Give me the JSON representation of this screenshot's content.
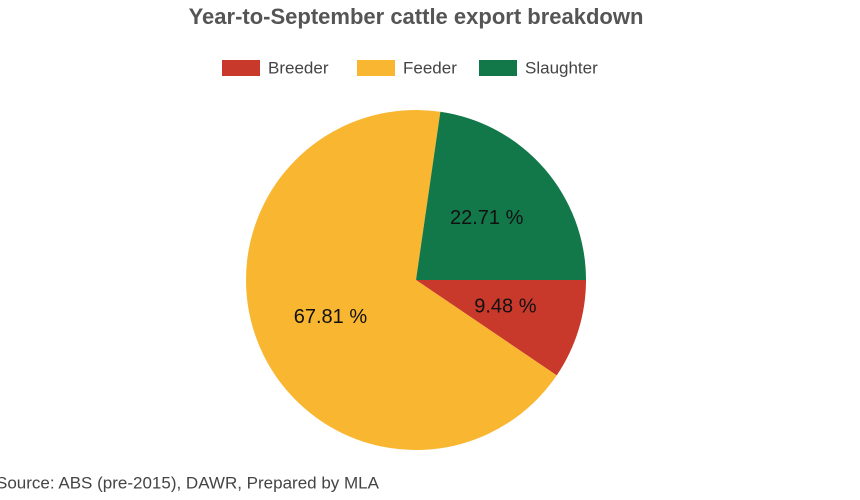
{
  "chart_data": {
    "type": "pie",
    "title": "Year-to-September cattle export breakdown",
    "categories": [
      "Breeder",
      "Feeder",
      "Slaughter"
    ],
    "values": [
      9.48,
      67.81,
      22.71
    ],
    "value_labels": [
      "9.48 %",
      "67.81 %",
      "22.71 %"
    ],
    "colors": [
      "#c8392b",
      "#f9b630",
      "#12784a"
    ],
    "legend": "top",
    "source": "Source: ABS (pre-2015), DAWR, Prepared by MLA"
  }
}
